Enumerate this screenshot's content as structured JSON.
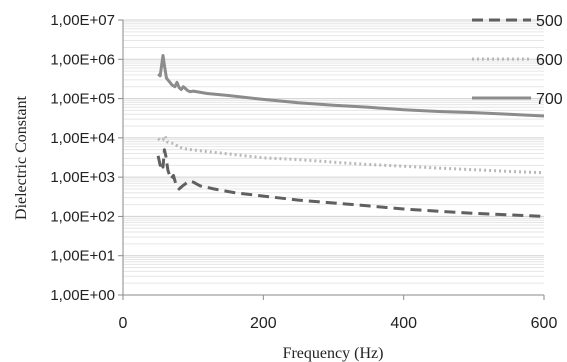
{
  "chart_data": {
    "type": "line",
    "xlabel": "Frequency (Hz)",
    "ylabel": "Dielectric Constant",
    "xlim": [
      0,
      600
    ],
    "ylim": [
      1,
      10000000
    ],
    "y_scale": "log",
    "x_ticks": [
      "0",
      "200",
      "400",
      "600"
    ],
    "y_ticks": [
      "1,00E+00",
      "1,00E+01",
      "1,00E+02",
      "1,00E+03",
      "1,00E+04",
      "1,00E+05",
      "1,00E+06",
      "1,00E+07"
    ],
    "grid": "horizontal minor gridlines",
    "legend_position": "top-right",
    "series": [
      {
        "name": "500",
        "style": "dashed",
        "color": "#606060",
        "points": [
          [
            50,
            3500
          ],
          [
            53,
            2000
          ],
          [
            55,
            2500
          ],
          [
            57,
            1800
          ],
          [
            59,
            5000
          ],
          [
            61,
            3500
          ],
          [
            64,
            1500
          ],
          [
            68,
            900
          ],
          [
            72,
            1100
          ],
          [
            76,
            600
          ],
          [
            80,
            500
          ],
          [
            85,
            600
          ],
          [
            90,
            700
          ],
          [
            95,
            800
          ],
          [
            100,
            750
          ],
          [
            110,
            600
          ],
          [
            130,
            500
          ],
          [
            160,
            400
          ],
          [
            200,
            330
          ],
          [
            250,
            260
          ],
          [
            300,
            220
          ],
          [
            350,
            185
          ],
          [
            400,
            155
          ],
          [
            450,
            135
          ],
          [
            500,
            120
          ],
          [
            550,
            110
          ],
          [
            600,
            100
          ]
        ]
      },
      {
        "name": "600",
        "style": "dotted",
        "color": "#b8b8b8",
        "points": [
          [
            50,
            9500
          ],
          [
            54,
            8500
          ],
          [
            57,
            9000
          ],
          [
            60,
            11000
          ],
          [
            63,
            8000
          ],
          [
            67,
            7500
          ],
          [
            72,
            7200
          ],
          [
            80,
            5800
          ],
          [
            90,
            5200
          ],
          [
            100,
            4900
          ],
          [
            150,
            3900
          ],
          [
            200,
            3100
          ],
          [
            250,
            2800
          ],
          [
            300,
            2400
          ],
          [
            350,
            2100
          ],
          [
            400,
            1900
          ],
          [
            450,
            1700
          ],
          [
            500,
            1550
          ],
          [
            550,
            1400
          ],
          [
            600,
            1300
          ]
        ]
      },
      {
        "name": "700",
        "style": "solid",
        "color": "#8c8c8c",
        "points": [
          [
            50,
            420000
          ],
          [
            53,
            380000
          ],
          [
            55,
            700000
          ],
          [
            57,
            1250000
          ],
          [
            59,
            700000
          ],
          [
            62,
            330000
          ],
          [
            66,
            270000
          ],
          [
            70,
            220000
          ],
          [
            74,
            200000
          ],
          [
            77,
            260000
          ],
          [
            80,
            190000
          ],
          [
            83,
            170000
          ],
          [
            86,
            200000
          ],
          [
            89,
            180000
          ],
          [
            92,
            160000
          ],
          [
            96,
            150000
          ],
          [
            100,
            155000
          ],
          [
            120,
            135000
          ],
          [
            150,
            120000
          ],
          [
            200,
            95000
          ],
          [
            250,
            78000
          ],
          [
            300,
            68000
          ],
          [
            350,
            60000
          ],
          [
            400,
            52000
          ],
          [
            450,
            47000
          ],
          [
            500,
            44000
          ],
          [
            550,
            40000
          ],
          [
            600,
            36000
          ]
        ]
      }
    ]
  }
}
